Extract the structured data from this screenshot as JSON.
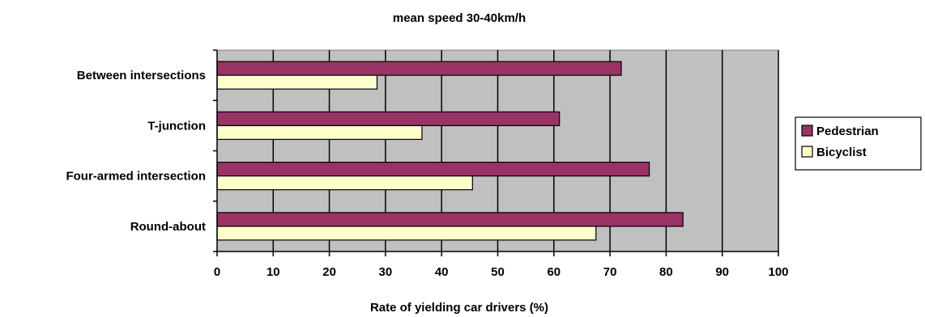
{
  "chart_data": {
    "type": "bar",
    "orientation": "horizontal",
    "title": "mean speed 30-40km/h",
    "xlabel": "Rate of yielding car drivers (%)",
    "ylabel": "",
    "categories": [
      "Between intersections",
      "T-junction",
      "Four-armed intersection",
      "Round-about"
    ],
    "series": [
      {
        "name": "Pedestrian",
        "color": "#993366",
        "values": [
          72,
          61,
          77,
          83
        ]
      },
      {
        "name": "Bicyclist",
        "color": "#ffffcc",
        "values": [
          28.5,
          36.5,
          45.5,
          67.5
        ]
      }
    ],
    "xlim": [
      0,
      100
    ],
    "xticks": [
      "0",
      "10",
      "20",
      "30",
      "40",
      "50",
      "60",
      "70",
      "80",
      "90",
      "100"
    ],
    "grid": "vertical",
    "plot_background": "#c0c0c0",
    "legend": "right"
  }
}
